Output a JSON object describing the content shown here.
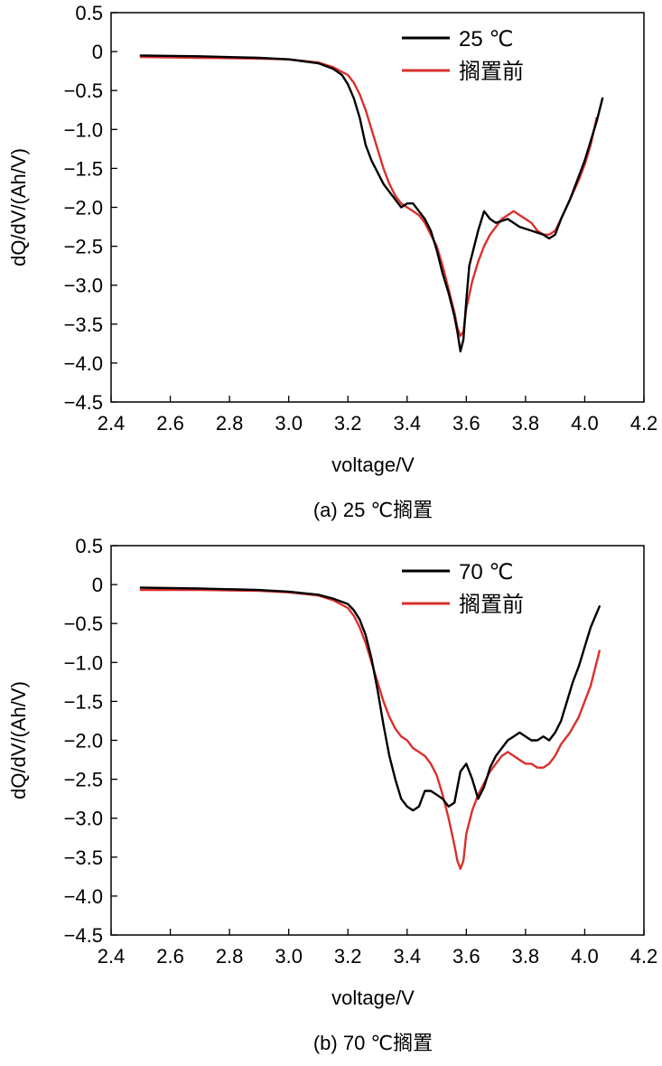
{
  "chart_data": [
    {
      "type": "line",
      "panel": "a",
      "caption": "(a) 25 ℃搁置",
      "xlabel": "voltage/V",
      "ylabel": "dQ/dV/(Ah/V)",
      "xlim": [
        2.4,
        4.2
      ],
      "ylim": [
        -4.5,
        0.5
      ],
      "xticks": [
        "2.4",
        "2.6",
        "2.8",
        "3.0",
        "3.2",
        "3.4",
        "3.6",
        "3.8",
        "4.0",
        "4.2"
      ],
      "yticks": [
        "0.5",
        "0",
        "−0.5",
        "−1.0",
        "−1.5",
        "−2.0",
        "−2.5",
        "−3.0",
        "−3.5",
        "−4.0",
        "−4.5"
      ],
      "grid": false,
      "legend_position": "top-right",
      "series": [
        {
          "name": "25 ℃",
          "color": "#000000",
          "x": [
            2.5,
            2.7,
            2.9,
            3.0,
            3.1,
            3.15,
            3.18,
            3.2,
            3.22,
            3.24,
            3.26,
            3.28,
            3.3,
            3.32,
            3.34,
            3.36,
            3.38,
            3.4,
            3.42,
            3.44,
            3.46,
            3.48,
            3.5,
            3.52,
            3.54,
            3.56,
            3.57,
            3.58,
            3.59,
            3.6,
            3.61,
            3.62,
            3.64,
            3.66,
            3.68,
            3.7,
            3.74,
            3.78,
            3.82,
            3.86,
            3.88,
            3.9,
            3.92,
            3.95,
            3.98,
            4.0,
            4.02,
            4.04,
            4.06
          ],
          "y": [
            -0.05,
            -0.06,
            -0.08,
            -0.1,
            -0.15,
            -0.22,
            -0.3,
            -0.42,
            -0.6,
            -0.85,
            -1.2,
            -1.4,
            -1.55,
            -1.7,
            -1.8,
            -1.9,
            -2.0,
            -1.95,
            -1.95,
            -2.05,
            -2.15,
            -2.3,
            -2.55,
            -2.85,
            -3.1,
            -3.4,
            -3.6,
            -3.85,
            -3.7,
            -3.2,
            -2.75,
            -2.6,
            -2.3,
            -2.05,
            -2.15,
            -2.2,
            -2.15,
            -2.25,
            -2.3,
            -2.35,
            -2.4,
            -2.35,
            -2.15,
            -1.9,
            -1.6,
            -1.4,
            -1.15,
            -0.9,
            -0.6
          ]
        },
        {
          "name": "搁置前",
          "color": "#d9302c",
          "x": [
            2.5,
            2.7,
            2.9,
            3.0,
            3.1,
            3.15,
            3.2,
            3.22,
            3.24,
            3.26,
            3.28,
            3.3,
            3.32,
            3.34,
            3.36,
            3.38,
            3.4,
            3.42,
            3.44,
            3.46,
            3.48,
            3.5,
            3.52,
            3.54,
            3.56,
            3.57,
            3.58,
            3.59,
            3.6,
            3.62,
            3.64,
            3.66,
            3.68,
            3.7,
            3.72,
            3.74,
            3.76,
            3.78,
            3.8,
            3.82,
            3.84,
            3.86,
            3.88,
            3.9,
            3.92,
            3.95,
            3.98,
            4.0,
            4.02,
            4.04
          ],
          "y": [
            -0.07,
            -0.08,
            -0.09,
            -0.1,
            -0.14,
            -0.2,
            -0.3,
            -0.4,
            -0.55,
            -0.75,
            -1.0,
            -1.25,
            -1.5,
            -1.7,
            -1.85,
            -1.95,
            -2.0,
            -2.05,
            -2.1,
            -2.2,
            -2.35,
            -2.5,
            -2.75,
            -3.05,
            -3.35,
            -3.55,
            -3.65,
            -3.6,
            -3.3,
            -2.95,
            -2.7,
            -2.5,
            -2.35,
            -2.25,
            -2.15,
            -2.1,
            -2.05,
            -2.1,
            -2.15,
            -2.2,
            -2.3,
            -2.35,
            -2.35,
            -2.3,
            -2.15,
            -1.9,
            -1.65,
            -1.45,
            -1.2,
            -0.85
          ]
        }
      ]
    },
    {
      "type": "line",
      "panel": "b",
      "caption": "(b) 70 ℃搁置",
      "xlabel": "voltage/V",
      "ylabel": "dQ/dV/(Ah/V)",
      "xlim": [
        2.4,
        4.2
      ],
      "ylim": [
        -4.5,
        0.5
      ],
      "xticks": [
        "2.4",
        "2.6",
        "2.8",
        "3.0",
        "3.2",
        "3.4",
        "3.6",
        "3.8",
        "4.0",
        "4.2"
      ],
      "yticks": [
        "0.5",
        "0",
        "−0.5",
        "−1.0",
        "−1.5",
        "−2.0",
        "−2.5",
        "−3.0",
        "−3.5",
        "−4.0",
        "−4.5"
      ],
      "grid": false,
      "legend_position": "top-right",
      "series": [
        {
          "name": "70 ℃",
          "color": "#000000",
          "x": [
            2.5,
            2.7,
            2.9,
            3.0,
            3.1,
            3.15,
            3.2,
            3.22,
            3.24,
            3.26,
            3.28,
            3.3,
            3.32,
            3.34,
            3.36,
            3.38,
            3.4,
            3.42,
            3.44,
            3.46,
            3.48,
            3.5,
            3.52,
            3.54,
            3.56,
            3.58,
            3.6,
            3.62,
            3.64,
            3.66,
            3.68,
            3.7,
            3.72,
            3.74,
            3.76,
            3.78,
            3.8,
            3.82,
            3.84,
            3.86,
            3.88,
            3.9,
            3.92,
            3.94,
            3.96,
            3.98,
            4.0,
            4.02,
            4.05
          ],
          "y": [
            -0.04,
            -0.05,
            -0.07,
            -0.09,
            -0.13,
            -0.18,
            -0.25,
            -0.33,
            -0.45,
            -0.65,
            -0.95,
            -1.35,
            -1.8,
            -2.2,
            -2.5,
            -2.75,
            -2.85,
            -2.9,
            -2.85,
            -2.65,
            -2.65,
            -2.7,
            -2.75,
            -2.85,
            -2.8,
            -2.4,
            -2.3,
            -2.5,
            -2.75,
            -2.6,
            -2.35,
            -2.2,
            -2.1,
            -2.0,
            -1.95,
            -1.9,
            -1.95,
            -2.0,
            -2.0,
            -1.95,
            -2.0,
            -1.9,
            -1.75,
            -1.5,
            -1.25,
            -1.05,
            -0.8,
            -0.55,
            -0.28
          ]
        },
        {
          "name": "搁置前",
          "color": "#d9302c",
          "x": [
            2.5,
            2.7,
            2.9,
            3.0,
            3.1,
            3.15,
            3.2,
            3.22,
            3.24,
            3.26,
            3.28,
            3.3,
            3.32,
            3.34,
            3.36,
            3.38,
            3.4,
            3.42,
            3.44,
            3.46,
            3.48,
            3.5,
            3.52,
            3.54,
            3.56,
            3.57,
            3.58,
            3.59,
            3.6,
            3.62,
            3.64,
            3.66,
            3.68,
            3.7,
            3.72,
            3.74,
            3.76,
            3.78,
            3.8,
            3.82,
            3.84,
            3.86,
            3.88,
            3.9,
            3.92,
            3.95,
            3.98,
            4.0,
            4.02,
            4.05
          ],
          "y": [
            -0.07,
            -0.07,
            -0.08,
            -0.1,
            -0.14,
            -0.2,
            -0.3,
            -0.4,
            -0.55,
            -0.75,
            -1.0,
            -1.25,
            -1.5,
            -1.7,
            -1.85,
            -1.95,
            -2.0,
            -2.1,
            -2.15,
            -2.2,
            -2.3,
            -2.45,
            -2.7,
            -3.0,
            -3.35,
            -3.55,
            -3.65,
            -3.55,
            -3.2,
            -2.9,
            -2.7,
            -2.55,
            -2.4,
            -2.3,
            -2.2,
            -2.15,
            -2.2,
            -2.25,
            -2.3,
            -2.3,
            -2.35,
            -2.35,
            -2.3,
            -2.2,
            -2.05,
            -1.9,
            -1.7,
            -1.5,
            -1.3,
            -0.85
          ]
        }
      ]
    }
  ]
}
